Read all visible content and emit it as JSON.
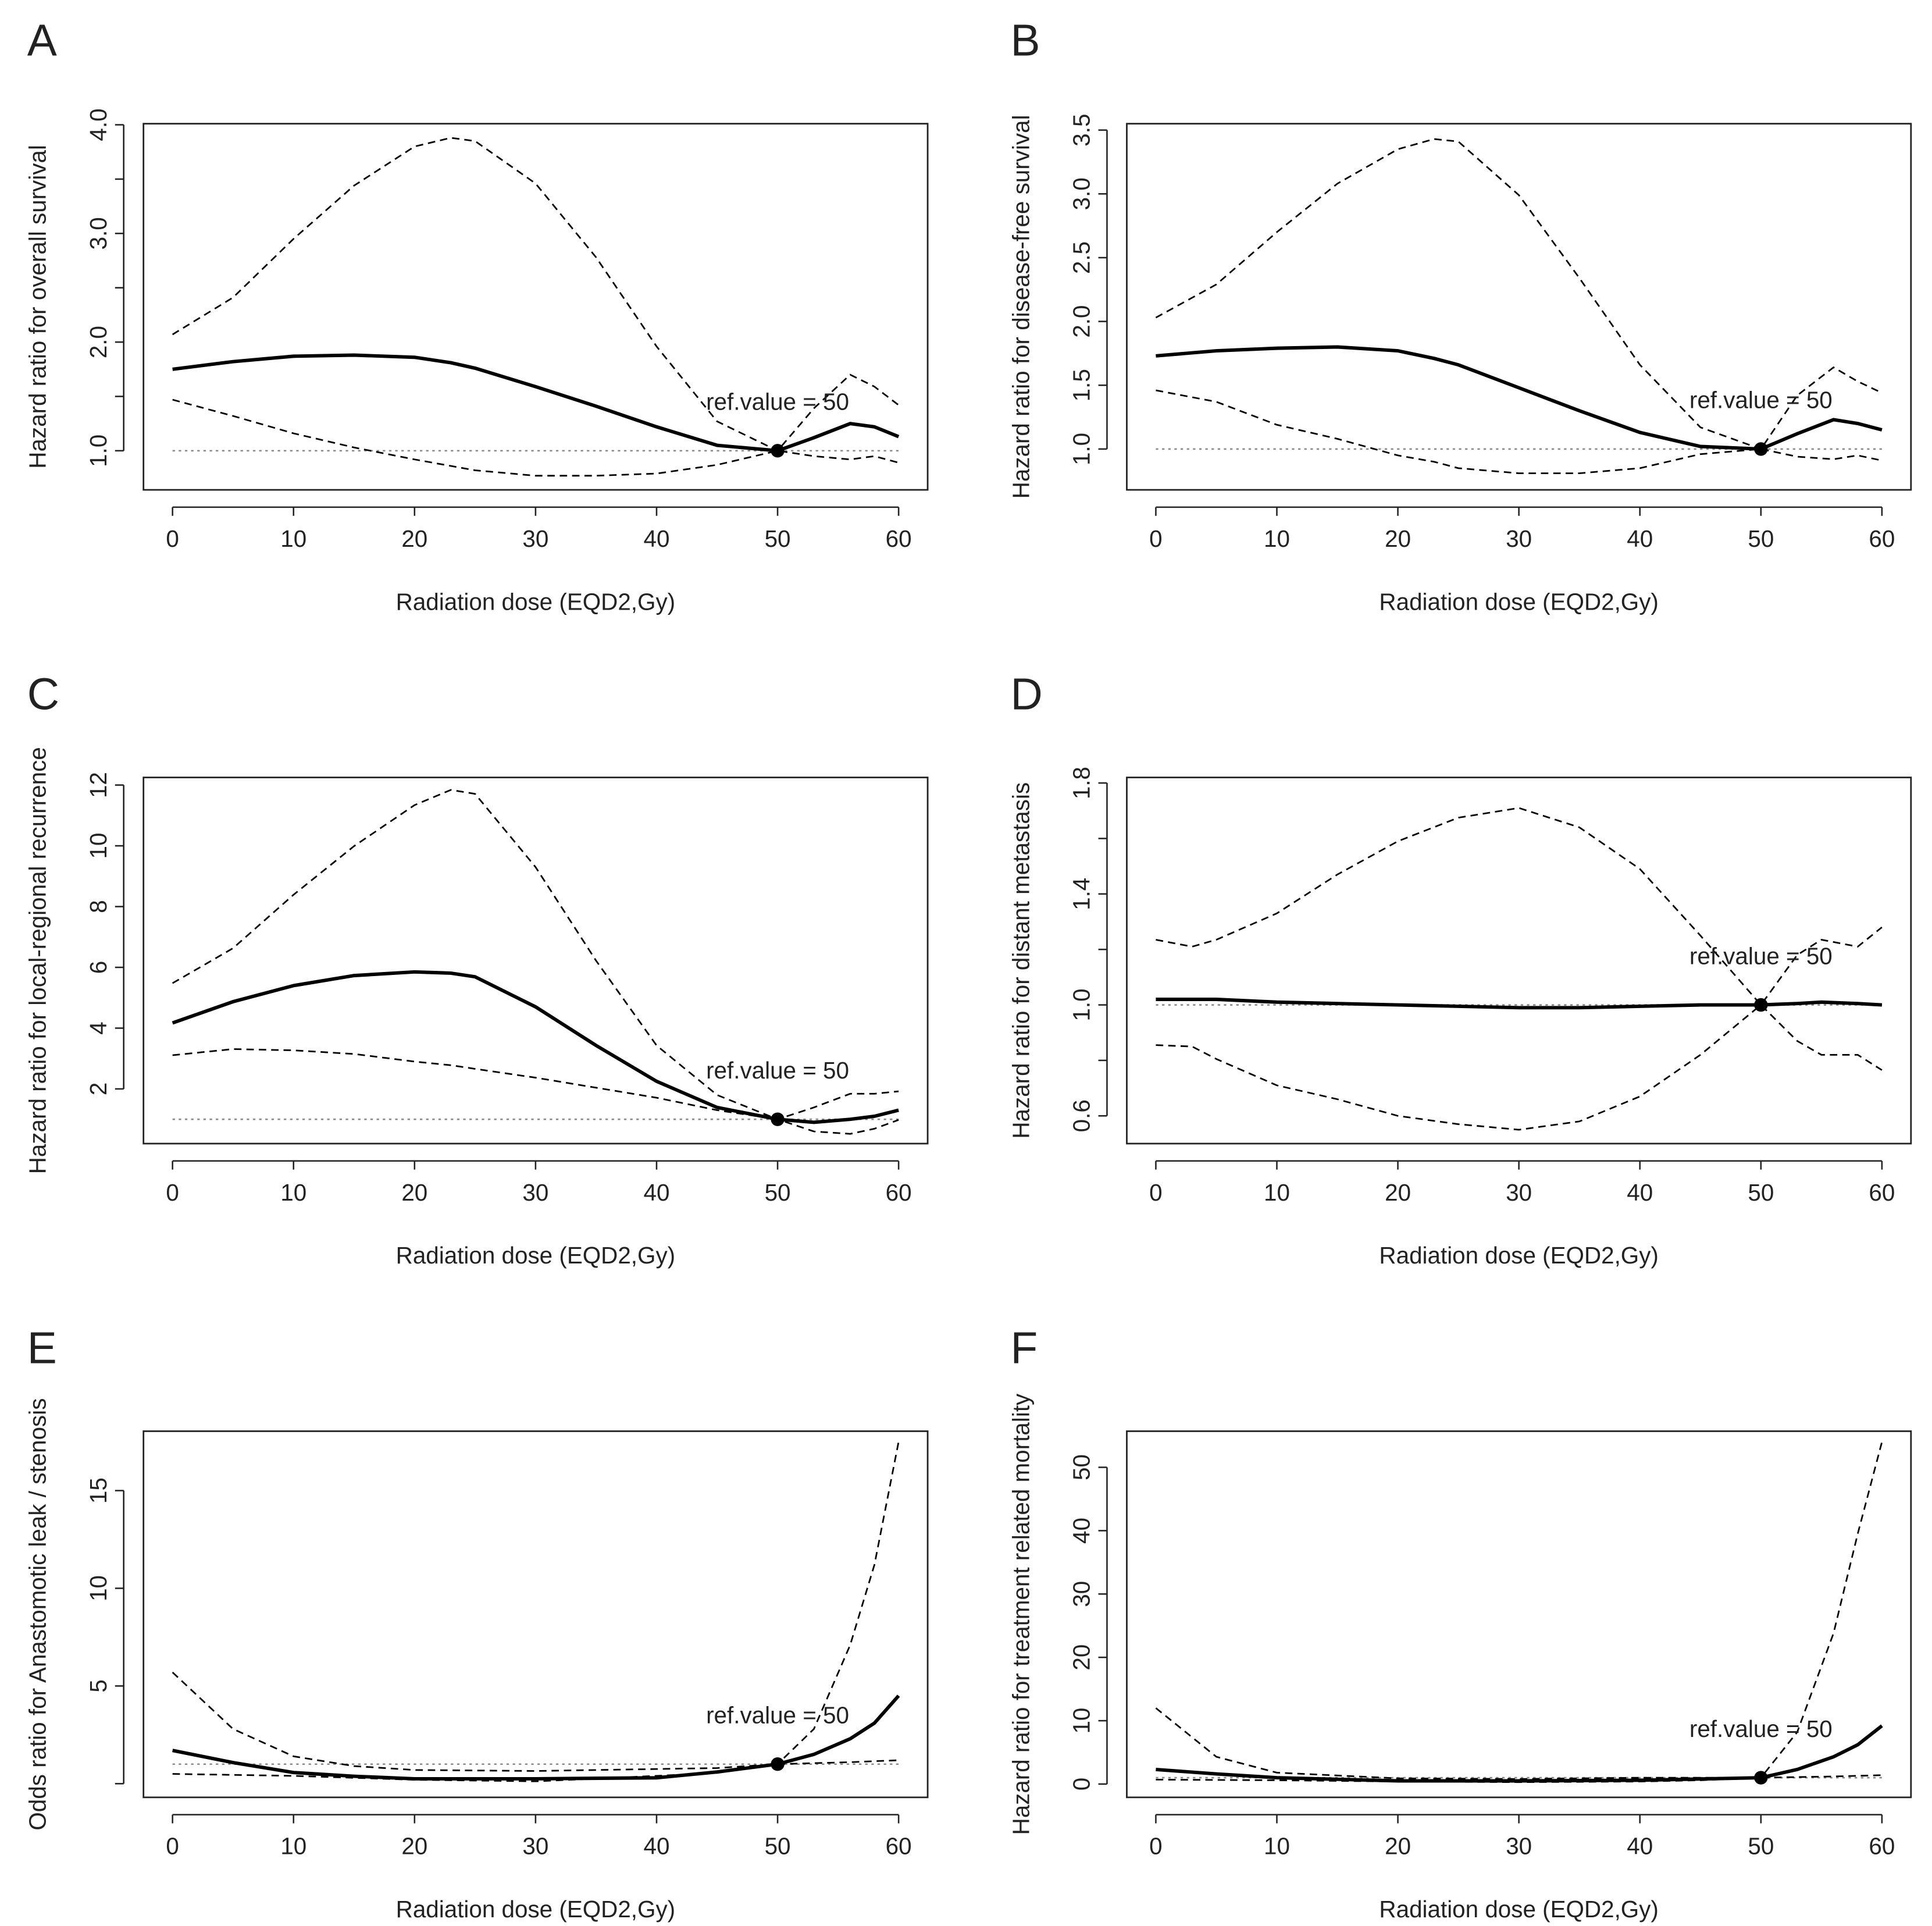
{
  "chart_data": [
    {
      "type": "line",
      "panel": "A",
      "xlabel": "Radiation dose (EQD2,Gy)",
      "ylabel": "Hazard ratio for overall survival",
      "annotation": "ref.value = 50",
      "x": [
        0,
        5,
        10,
        15,
        20,
        23,
        25,
        30,
        35,
        40,
        45,
        50,
        53,
        56,
        58,
        60
      ],
      "series": [
        {
          "color": "#000000",
          "dash": "solid",
          "values": [
            1.75,
            1.82,
            1.87,
            1.88,
            1.86,
            1.81,
            1.76,
            1.59,
            1.41,
            1.22,
            1.05,
            1.0,
            1.12,
            1.25,
            1.22,
            1.13
          ]
        },
        {
          "color": "#000000",
          "dash": "dashed",
          "values": [
            2.07,
            2.41,
            2.95,
            3.44,
            3.8,
            3.88,
            3.85,
            3.46,
            2.78,
            1.96,
            1.27,
            1.0,
            1.39,
            1.7,
            1.59,
            1.42
          ]
        },
        {
          "color": "#000000",
          "dash": "dashed",
          "values": [
            1.47,
            1.32,
            1.16,
            1.03,
            0.92,
            0.86,
            0.82,
            0.77,
            0.77,
            0.79,
            0.87,
            1.0,
            0.95,
            0.92,
            0.95,
            0.89
          ]
        }
      ],
      "hline": {
        "y": 1,
        "color": "#888888",
        "dash": "dotted"
      },
      "ref_point": {
        "x": 50,
        "y": 1
      },
      "xlim": [
        -2.4,
        62.4
      ],
      "xticks": [
        0,
        10,
        20,
        30,
        40,
        50,
        60
      ],
      "ylim": [
        0.64,
        4.01
      ],
      "yticks": [
        {
          "value": 1,
          "label": "1.0"
        },
        {
          "value": 2,
          "label": "2.0"
        },
        {
          "value": 3,
          "label": "3.0"
        },
        {
          "value": 4,
          "label": "4.0"
        }
      ],
      "yticks_minor": [
        1.5,
        2.5,
        3.5
      ]
    },
    {
      "type": "line",
      "panel": "B",
      "xlabel": "Radiation dose (EQD2,Gy)",
      "ylabel": "Hazard ratio for disease-free survival",
      "annotation": "ref.value = 50",
      "x": [
        0,
        5,
        10,
        15,
        20,
        23,
        25,
        30,
        35,
        40,
        45,
        50,
        53,
        56,
        58,
        60
      ],
      "series": [
        {
          "color": "#000000",
          "dash": "solid",
          "values": [
            1.73,
            1.77,
            1.79,
            1.8,
            1.77,
            1.71,
            1.66,
            1.48,
            1.3,
            1.13,
            1.02,
            1.0,
            1.12,
            1.23,
            1.2,
            1.15
          ]
        },
        {
          "color": "#000000",
          "dash": "dashed",
          "values": [
            2.03,
            2.29,
            2.7,
            3.08,
            3.35,
            3.43,
            3.41,
            2.99,
            2.34,
            1.66,
            1.17,
            1.0,
            1.42,
            1.64,
            1.53,
            1.44
          ]
        },
        {
          "color": "#000000",
          "dash": "dashed",
          "values": [
            1.46,
            1.37,
            1.19,
            1.08,
            0.95,
            0.9,
            0.85,
            0.81,
            0.81,
            0.85,
            0.96,
            1.0,
            0.94,
            0.92,
            0.95,
            0.91
          ]
        }
      ],
      "hline": {
        "y": 1,
        "color": "#888888",
        "dash": "dotted"
      },
      "ref_point": {
        "x": 50,
        "y": 1
      },
      "xlim": [
        -2.4,
        62.4
      ],
      "xticks": [
        0,
        10,
        20,
        30,
        40,
        50,
        60
      ],
      "ylim": [
        0.68,
        3.55
      ],
      "yticks": [
        {
          "value": 1,
          "label": "1.0"
        },
        1.5,
        {
          "value": 2,
          "label": "2.0"
        },
        2.5,
        {
          "value": 3,
          "label": "3.0"
        },
        3.5
      ],
      "yticks_minor": []
    },
    {
      "type": "line",
      "panel": "C",
      "xlabel": "Radiation dose (EQD2,Gy)",
      "ylabel": "Hazard ratio for local-regional recurrence",
      "annotation": "ref.value = 50",
      "x": [
        0,
        5,
        10,
        15,
        20,
        23,
        25,
        30,
        35,
        40,
        45,
        50,
        53,
        56,
        58,
        60
      ],
      "series": [
        {
          "color": "#000000",
          "dash": "solid",
          "values": [
            4.17,
            4.87,
            5.4,
            5.73,
            5.85,
            5.81,
            5.69,
            4.7,
            3.43,
            2.25,
            1.39,
            1.0,
            0.9,
            1.0,
            1.1,
            1.3
          ]
        },
        {
          "color": "#000000",
          "dash": "dashed",
          "values": [
            5.48,
            6.63,
            8.39,
            9.99,
            11.34,
            11.84,
            11.71,
            9.3,
            6.22,
            3.43,
            1.8,
            1.0,
            1.39,
            1.84,
            1.84,
            1.92
          ]
        },
        {
          "color": "#000000",
          "dash": "dashed",
          "values": [
            3.11,
            3.31,
            3.27,
            3.15,
            2.9,
            2.78,
            2.66,
            2.37,
            2.04,
            1.71,
            1.3,
            1.0,
            0.6,
            0.52,
            0.69,
            0.98
          ]
        }
      ],
      "hline": {
        "y": 1,
        "color": "#888888",
        "dash": "dotted"
      },
      "ref_point": {
        "x": 50,
        "y": 1
      },
      "xlim": [
        -2.4,
        62.4
      ],
      "xticks": [
        0,
        10,
        20,
        30,
        40,
        50,
        60
      ],
      "ylim": [
        0.2,
        12.25
      ],
      "yticks": [
        2,
        4,
        6,
        8,
        10,
        12
      ],
      "yticks_minor": []
    },
    {
      "type": "line",
      "panel": "D",
      "xlabel": "Radiation dose (EQD2,Gy)",
      "ylabel": "Hazard ratio for distant metastasis",
      "annotation": "ref.value = 50",
      "x": [
        0,
        3,
        5,
        10,
        15,
        20,
        25,
        30,
        35,
        40,
        45,
        50,
        53,
        55,
        58,
        60
      ],
      "series": [
        {
          "color": "#000000",
          "dash": "solid",
          "values": [
            1.02,
            1.02,
            1.02,
            1.01,
            1.005,
            1.0,
            0.995,
            0.99,
            0.99,
            0.995,
            1.0,
            1.0,
            1.005,
            1.01,
            1.005,
            1.0
          ]
        },
        {
          "color": "#000000",
          "dash": "dashed",
          "values": [
            1.235,
            1.21,
            1.235,
            1.33,
            1.47,
            1.59,
            1.675,
            1.71,
            1.64,
            1.49,
            1.25,
            1.0,
            1.18,
            1.235,
            1.21,
            1.28
          ]
        },
        {
          "color": "#000000",
          "dash": "dashed",
          "values": [
            0.855,
            0.85,
            0.805,
            0.71,
            0.66,
            0.6,
            0.57,
            0.55,
            0.58,
            0.67,
            0.82,
            1.0,
            0.87,
            0.82,
            0.82,
            0.765
          ]
        }
      ],
      "hline": {
        "y": 1,
        "color": "#888888",
        "dash": "dotted"
      },
      "ref_point": {
        "x": 50,
        "y": 1
      },
      "xlim": [
        -2.4,
        62.4
      ],
      "xticks": [
        0,
        10,
        20,
        30,
        40,
        50,
        60
      ],
      "ylim": [
        0.5,
        1.82
      ],
      "yticks": [
        0.6,
        {
          "value": 1,
          "label": "1.0"
        },
        1.4,
        1.8
      ],
      "yticks_minor": [
        0.8,
        1.2,
        1.6
      ]
    },
    {
      "type": "line",
      "panel": "E",
      "xlabel": "Radiation dose (EQD2,Gy)",
      "ylabel": "Odds ratio for Anastomotic leak / stenosis",
      "annotation": "ref.value = 50",
      "x": [
        0,
        5,
        10,
        15,
        20,
        30,
        40,
        45,
        50,
        53,
        56,
        58,
        60
      ],
      "series": [
        {
          "color": "#000000",
          "dash": "solid",
          "values": [
            1.7,
            1.08,
            0.57,
            0.38,
            0.25,
            0.25,
            0.3,
            0.6,
            1.0,
            1.5,
            2.3,
            3.1,
            4.5
          ]
        },
        {
          "color": "#000000",
          "dash": "dashed",
          "values": [
            5.7,
            2.8,
            1.4,
            0.9,
            0.7,
            0.65,
            0.75,
            0.8,
            1.0,
            2.8,
            7.1,
            11.2,
            17.5
          ]
        },
        {
          "color": "#000000",
          "dash": "dashed",
          "values": [
            0.5,
            0.45,
            0.4,
            0.3,
            0.2,
            0.12,
            0.4,
            0.55,
            1.0,
            1.05,
            1.1,
            1.15,
            1.2
          ]
        }
      ],
      "hline": {
        "y": 1,
        "color": "#888888",
        "dash": "dotted"
      },
      "ref_point": {
        "x": 50,
        "y": 1
      },
      "xlim": [
        -2.4,
        62.4
      ],
      "xticks": [
        0,
        10,
        20,
        30,
        40,
        50,
        60
      ],
      "ylim": [
        -0.7,
        18.04
      ],
      "yticks": [
        5,
        10,
        15
      ],
      "yticks_minor": [
        0
      ]
    },
    {
      "type": "line",
      "panel": "F",
      "xlabel": "Radiation dose (EQD2,Gy)",
      "ylabel": "Hazard ratio for treatment related mortality",
      "annotation": "ref.value = 50",
      "x": [
        0,
        5,
        10,
        20,
        30,
        40,
        45,
        50,
        53,
        56,
        58,
        60
      ],
      "series": [
        {
          "color": "#000000",
          "dash": "solid",
          "values": [
            2.3,
            1.6,
            1.0,
            0.5,
            0.5,
            0.6,
            0.8,
            1.0,
            2.3,
            4.3,
            6.2,
            9.2
          ]
        },
        {
          "color": "#000000",
          "dash": "dashed",
          "values": [
            12,
            4.3,
            1.8,
            0.9,
            0.8,
            1.0,
            1.0,
            1.0,
            8.2,
            23.8,
            39.5,
            54
          ]
        },
        {
          "color": "#000000",
          "dash": "dashed",
          "values": [
            0.7,
            0.65,
            0.6,
            0.4,
            0.3,
            0.4,
            0.6,
            1.0,
            1.1,
            1.2,
            1.3,
            1.4
          ]
        }
      ],
      "hline": {
        "y": 1,
        "color": "#888888",
        "dash": "dotted"
      },
      "ref_point": {
        "x": 50,
        "y": 1
      },
      "xlim": [
        -2.4,
        62.4
      ],
      "xticks": [
        0,
        10,
        20,
        30,
        40,
        50,
        60
      ],
      "ylim": [
        -2.1,
        55.7
      ],
      "yticks": [
        0,
        10,
        20,
        30,
        40,
        50
      ],
      "yticks_minor": []
    }
  ]
}
